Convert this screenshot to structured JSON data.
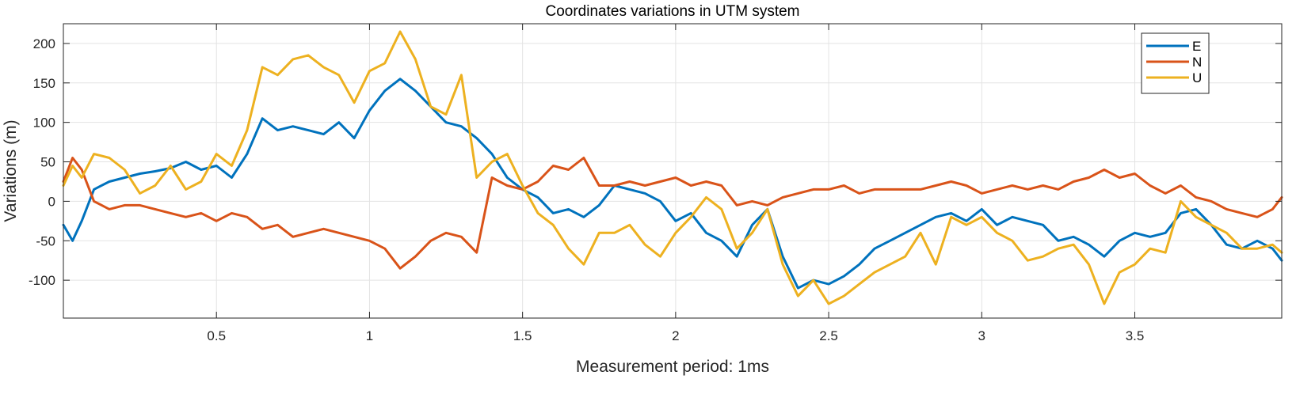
{
  "chart_data": {
    "type": "line",
    "title": "Coordinates variations in UTM system",
    "xlabel": "Measurement period: 1ms",
    "ylabel": "Variations (m)",
    "xlim": [
      0,
      3.98
    ],
    "ylim": [
      -148,
      225
    ],
    "xticks": [
      0.5,
      1,
      1.5,
      2,
      2.5,
      3,
      3.5
    ],
    "xtick_labels": [
      "0.5",
      "1",
      "1.5",
      "2",
      "2.5",
      "3",
      "3.5"
    ],
    "yticks": [
      -100,
      -50,
      0,
      50,
      100,
      150,
      200
    ],
    "ytick_labels": [
      "-100",
      "-50",
      "0",
      "50",
      "100",
      "150",
      "200"
    ],
    "grid": true,
    "legend_position": "top-right",
    "series": [
      {
        "name": "E",
        "color": "#0072BD",
        "x": [
          0,
          0.03,
          0.06,
          0.1,
          0.15,
          0.2,
          0.25,
          0.3,
          0.35,
          0.4,
          0.45,
          0.5,
          0.55,
          0.6,
          0.65,
          0.7,
          0.75,
          0.8,
          0.85,
          0.9,
          0.95,
          1.0,
          1.05,
          1.1,
          1.15,
          1.2,
          1.25,
          1.3,
          1.35,
          1.4,
          1.45,
          1.5,
          1.55,
          1.6,
          1.65,
          1.7,
          1.75,
          1.8,
          1.85,
          1.9,
          1.95,
          2.0,
          2.05,
          2.1,
          2.15,
          2.2,
          2.25,
          2.3,
          2.35,
          2.4,
          2.45,
          2.5,
          2.55,
          2.6,
          2.65,
          2.7,
          2.75,
          2.8,
          2.85,
          2.9,
          2.95,
          3.0,
          3.05,
          3.1,
          3.15,
          3.2,
          3.25,
          3.3,
          3.35,
          3.4,
          3.45,
          3.5,
          3.55,
          3.6,
          3.65,
          3.7,
          3.75,
          3.8,
          3.85,
          3.9,
          3.95,
          3.98
        ],
        "y": [
          -30,
          -50,
          -25,
          15,
          25,
          30,
          35,
          38,
          42,
          50,
          40,
          45,
          30,
          60,
          105,
          90,
          95,
          90,
          85,
          100,
          80,
          115,
          140,
          155,
          140,
          120,
          100,
          95,
          80,
          60,
          30,
          15,
          5,
          -15,
          -10,
          -20,
          -5,
          20,
          15,
          10,
          0,
          -25,
          -15,
          -40,
          -50,
          -70,
          -30,
          -10,
          -70,
          -110,
          -100,
          -105,
          -95,
          -80,
          -60,
          -50,
          -40,
          -30,
          -20,
          -15,
          -25,
          -10,
          -30,
          -20,
          -25,
          -30,
          -50,
          -45,
          -55,
          -70,
          -50,
          -40,
          -45,
          -40,
          -15,
          -10,
          -30,
          -55,
          -60,
          -50,
          -60,
          -75
        ]
      },
      {
        "name": "N",
        "color": "#D95319",
        "x": [
          0,
          0.03,
          0.06,
          0.1,
          0.15,
          0.2,
          0.25,
          0.3,
          0.35,
          0.4,
          0.45,
          0.5,
          0.55,
          0.6,
          0.65,
          0.7,
          0.75,
          0.8,
          0.85,
          0.9,
          0.95,
          1.0,
          1.05,
          1.1,
          1.15,
          1.2,
          1.25,
          1.3,
          1.35,
          1.4,
          1.45,
          1.5,
          1.55,
          1.6,
          1.65,
          1.7,
          1.75,
          1.8,
          1.85,
          1.9,
          1.95,
          2.0,
          2.05,
          2.1,
          2.15,
          2.2,
          2.25,
          2.3,
          2.35,
          2.4,
          2.45,
          2.5,
          2.55,
          2.6,
          2.65,
          2.7,
          2.75,
          2.8,
          2.85,
          2.9,
          2.95,
          3.0,
          3.05,
          3.1,
          3.15,
          3.2,
          3.25,
          3.3,
          3.35,
          3.4,
          3.45,
          3.5,
          3.55,
          3.6,
          3.65,
          3.7,
          3.75,
          3.8,
          3.85,
          3.9,
          3.95,
          3.98
        ],
        "y": [
          25,
          55,
          40,
          0,
          -10,
          -5,
          -5,
          -10,
          -15,
          -20,
          -15,
          -25,
          -15,
          -20,
          -35,
          -30,
          -45,
          -40,
          -35,
          -40,
          -45,
          -50,
          -60,
          -85,
          -70,
          -50,
          -40,
          -45,
          -65,
          30,
          20,
          15,
          25,
          45,
          40,
          55,
          20,
          20,
          25,
          20,
          25,
          30,
          20,
          25,
          20,
          -5,
          0,
          -5,
          5,
          10,
          15,
          15,
          20,
          10,
          15,
          15,
          15,
          15,
          20,
          25,
          20,
          10,
          15,
          20,
          15,
          20,
          15,
          25,
          30,
          40,
          30,
          35,
          20,
          10,
          20,
          5,
          0,
          -10,
          -15,
          -20,
          -10,
          5
        ]
      },
      {
        "name": "U",
        "color": "#EDB120",
        "x": [
          0,
          0.03,
          0.06,
          0.1,
          0.15,
          0.2,
          0.25,
          0.3,
          0.35,
          0.4,
          0.45,
          0.5,
          0.55,
          0.6,
          0.65,
          0.7,
          0.75,
          0.8,
          0.85,
          0.9,
          0.95,
          1.0,
          1.05,
          1.1,
          1.15,
          1.2,
          1.25,
          1.3,
          1.35,
          1.4,
          1.45,
          1.5,
          1.55,
          1.6,
          1.65,
          1.7,
          1.75,
          1.8,
          1.85,
          1.9,
          1.95,
          2.0,
          2.05,
          2.1,
          2.15,
          2.2,
          2.25,
          2.3,
          2.35,
          2.4,
          2.45,
          2.5,
          2.55,
          2.6,
          2.65,
          2.7,
          2.75,
          2.8,
          2.85,
          2.9,
          2.95,
          3.0,
          3.05,
          3.1,
          3.15,
          3.2,
          3.25,
          3.3,
          3.35,
          3.4,
          3.45,
          3.5,
          3.55,
          3.6,
          3.65,
          3.7,
          3.75,
          3.8,
          3.85,
          3.9,
          3.95,
          3.98
        ],
        "y": [
          20,
          45,
          30,
          60,
          55,
          40,
          10,
          20,
          45,
          15,
          25,
          60,
          45,
          90,
          170,
          160,
          180,
          185,
          170,
          160,
          125,
          165,
          175,
          215,
          180,
          120,
          110,
          160,
          30,
          50,
          60,
          20,
          -15,
          -30,
          -60,
          -80,
          -40,
          -40,
          -30,
          -55,
          -70,
          -40,
          -20,
          5,
          -10,
          -60,
          -40,
          -10,
          -80,
          -120,
          -100,
          -130,
          -120,
          -105,
          -90,
          -80,
          -70,
          -40,
          -80,
          -20,
          -30,
          -20,
          -40,
          -50,
          -75,
          -70,
          -60,
          -55,
          -80,
          -130,
          -90,
          -80,
          -60,
          -65,
          0,
          -20,
          -30,
          -40,
          -60,
          -60,
          -55,
          -65
        ]
      }
    ]
  }
}
